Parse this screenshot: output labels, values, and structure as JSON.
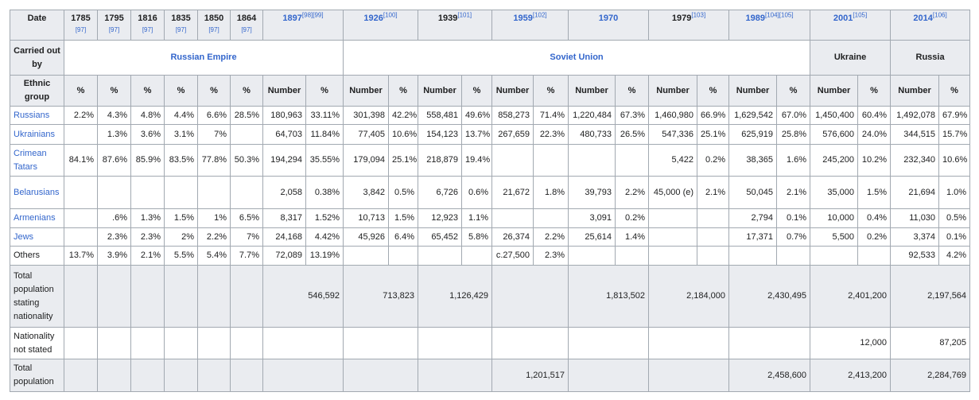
{
  "header": {
    "date_label": "Date",
    "years": [
      {
        "year": "1785",
        "ref": "[97]"
      },
      {
        "year": "1795",
        "ref": "[97]"
      },
      {
        "year": "1816",
        "ref": "[97]"
      },
      {
        "year": "1835",
        "ref": "[97]"
      },
      {
        "year": "1850",
        "ref": "[97]"
      },
      {
        "year": "1864",
        "ref": "[97]"
      },
      {
        "year": "1897",
        "ref": "[98][99]"
      },
      {
        "year": "1926",
        "ref": "[100]"
      },
      {
        "year": "1939",
        "ref": "[101]"
      },
      {
        "year": "1959",
        "ref": "[102]"
      },
      {
        "year": "1970"
      },
      {
        "year": "1979",
        "ref": "[103]"
      },
      {
        "year": "1989",
        "ref": "[104][105]"
      },
      {
        "year": "2001",
        "ref": "[105]"
      },
      {
        "year": "2014",
        "ref": "[106]"
      }
    ]
  },
  "carried_out_by": {
    "label": "Carried out by",
    "entities": [
      "Russian Empire",
      "Soviet Union",
      "Ukraine",
      "Russia"
    ]
  },
  "ethnic_group": {
    "label": "Ethnic group",
    "subheaders": [
      "%",
      "%",
      "%",
      "%",
      "%",
      "%",
      "Number",
      "%",
      "Number",
      "%",
      "Number",
      "%",
      "Number",
      "%",
      "Number",
      "%",
      "Number",
      "%",
      "Number",
      "%",
      "Number",
      "%",
      "Number",
      "%"
    ]
  },
  "rows": [
    {
      "name": "Russians",
      "cells": [
        "2.2%",
        "4.3%",
        "4.8%",
        "4.4%",
        "6.6%",
        "28.5%",
        "180,963",
        "33.11%",
        "301,398",
        "42.2%",
        "558,481",
        "49.6%",
        "858,273",
        "71.4%",
        "1,220,484",
        "67.3%",
        "1,460,980",
        "66.9%",
        "1,629,542",
        "67.0%",
        "1,450,400",
        "60.4%",
        "1,492,078",
        "67.9%"
      ]
    },
    {
      "name": "Ukrainians",
      "cells": [
        null,
        "1.3%",
        "3.6%",
        "3.1%",
        "7%",
        null,
        "64,703",
        "11.84%",
        "77,405",
        "10.6%",
        "154,123",
        "13.7%",
        "267,659",
        "22.3%",
        "480,733",
        "26.5%",
        "547,336",
        "25.1%",
        "625,919",
        "25.8%",
        "576,600",
        "24.0%",
        "344,515",
        "15.7%"
      ]
    },
    {
      "name": "Crimean Tatars",
      "cells": [
        "84.1%",
        "87.6%",
        "85.9%",
        "83.5%",
        "77.8%",
        "50.3%",
        "194,294",
        "35.55%",
        "179,094",
        "25.1%",
        "218,879",
        "19.4%",
        null,
        null,
        null,
        null,
        "5,422",
        "0.2%",
        "38,365",
        "1.6%",
        "245,200",
        "10.2%",
        "232,340",
        "10.6%"
      ]
    },
    {
      "name": "Belarusians",
      "cells": [
        null,
        null,
        null,
        null,
        null,
        null,
        "2,058",
        "0.38%",
        "3,842",
        "0.5%",
        "6,726",
        "0.6%",
        "21,672",
        "1.8%",
        "39,793",
        "2.2%",
        "45,000 (e)",
        "2.1%",
        "50,045",
        "2.1%",
        "35,000",
        "1.5%",
        "21,694",
        "1.0%"
      ]
    },
    {
      "name": "Armenians",
      "cells": [
        null,
        ".6%",
        "1.3%",
        "1.5%",
        "1%",
        "6.5%",
        "8,317",
        "1.52%",
        "10,713",
        "1.5%",
        "12,923",
        "1.1%",
        null,
        null,
        "3,091",
        "0.2%",
        null,
        null,
        "2,794",
        "0.1%",
        "10,000",
        "0.4%",
        "11,030",
        "0.5%"
      ]
    },
    {
      "name": "Jews",
      "cells": [
        null,
        "2.3%",
        "2.3%",
        "2%",
        "2.2%",
        "7%",
        "24,168",
        "4.42%",
        "45,926",
        "6.4%",
        "65,452",
        "5.8%",
        "26,374",
        "2.2%",
        "25,614",
        "1.4%",
        null,
        null,
        "17,371",
        "0.7%",
        "5,500",
        "0.2%",
        "3,374",
        "0.1%"
      ]
    },
    {
      "name": "Others",
      "cells": [
        "13.7%",
        "3.9%",
        "2.1%",
        "5.5%",
        "5.4%",
        "7.7%",
        "72,089",
        "13.19%",
        null,
        null,
        null,
        null,
        "c.27,500",
        "2.3%",
        null,
        null,
        null,
        null,
        null,
        null,
        null,
        null,
        "92,533",
        "4.2%"
      ]
    }
  ],
  "totals": [
    {
      "label": "Total population stating nationality",
      "values": [
        null,
        null,
        null,
        null,
        null,
        null,
        "546,592",
        "713,823",
        "1,126,429",
        null,
        "1,813,502",
        "2,184,000",
        "2,430,495",
        "2,401,200",
        "2,197,564"
      ]
    },
    {
      "label": "Nationality not stated",
      "values": [
        null,
        null,
        null,
        null,
        null,
        null,
        null,
        null,
        null,
        null,
        null,
        null,
        null,
        "12,000",
        "87,205"
      ]
    },
    {
      "label": "Total population",
      "values": [
        null,
        null,
        null,
        null,
        null,
        null,
        null,
        null,
        null,
        "1,201,517",
        null,
        null,
        "2,458,600",
        "2,413,200",
        "2,284,769"
      ]
    }
  ]
}
